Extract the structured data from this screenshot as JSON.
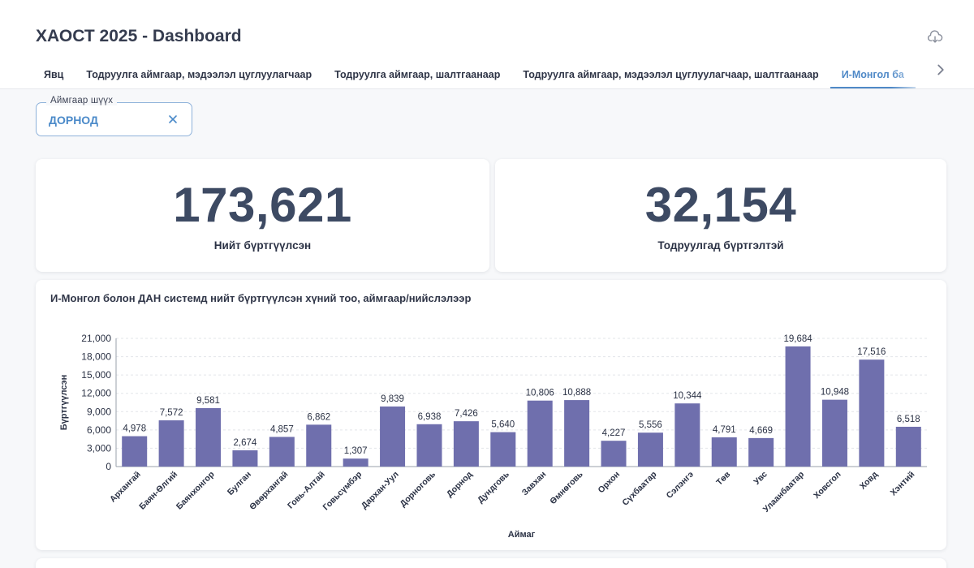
{
  "header": {
    "title": "ХАОСТ 2025 - Dashboard",
    "download_icon": "cloud-download-icon"
  },
  "tabs": [
    {
      "label": "Явц",
      "active": false
    },
    {
      "label": "Тодруулга аймгаар, мэдээлэл цуглуулагчаар",
      "active": false
    },
    {
      "label": "Тодруулга аймгаар, шалтгаанаар",
      "active": false
    },
    {
      "label": "Тодруулга аймгаар, мэдээлэл цуглуулагчаар, шалтгаанаар",
      "active": false
    },
    {
      "label": "И-Монгол ба",
      "active": true
    }
  ],
  "filter": {
    "label": "Аймгаар шүүх",
    "value": "ДОРНОД",
    "clear_icon": "close-icon"
  },
  "kpis": [
    {
      "value": "173,621",
      "label": "Нийт бүртгүүлсэн"
    },
    {
      "value": "32,154",
      "label": "Тодруулгад бүртгэлтэй"
    }
  ],
  "colors": {
    "bar": "#6f6fad",
    "accent": "#4f89c7",
    "grid": "#e3e5ea"
  },
  "chart_data": {
    "type": "bar",
    "title": "И-Монгол болон ДАН системд нийт бүртгүүлсэн хүний тоо, аймгаар/нийслэлээр",
    "xlabel": "Аймаг",
    "ylabel": "Бүртгүүлсэн",
    "ylim": [
      0,
      21000
    ],
    "yticks": [
      0,
      3000,
      6000,
      9000,
      12000,
      15000,
      18000,
      21000
    ],
    "ytick_labels": [
      "0",
      "3,000",
      "6,000",
      "9,000",
      "12,000",
      "15,000",
      "18,000",
      "21,000"
    ],
    "categories": [
      "Архангай",
      "Баян-Өлгий",
      "Баянхонгор",
      "Булган",
      "Өвөрхангай",
      "Говь-Алтай",
      "Говьсүмбэр",
      "Дархан-Уул",
      "Дорноговь",
      "Дорнод",
      "Дундговь",
      "Завхан",
      "Өмнөговь",
      "Орхон",
      "Сүхбаатар",
      "Сэлэнгэ",
      "Төв",
      "Увс",
      "Улаанбаатар",
      "Ховсгол",
      "Ховд",
      "Хэнтий"
    ],
    "values": [
      4978,
      7572,
      9581,
      2674,
      4857,
      6862,
      1307,
      9839,
      6938,
      7426,
      5640,
      10806,
      10888,
      4227,
      5556,
      10344,
      4791,
      4669,
      19684,
      10948,
      17516,
      6518
    ],
    "value_labels": [
      "4,978",
      "7,572",
      "9,581",
      "2,674",
      "4,857",
      "6,862",
      "1,307",
      "9,839",
      "6,938",
      "7,426",
      "5,640",
      "10,806",
      "10,888",
      "4,227",
      "5,556",
      "10,344",
      "4,791",
      "4,669",
      "19,684",
      "10,948",
      "17,516",
      "6,518"
    ],
    "grid": true,
    "legend": "none"
  }
}
